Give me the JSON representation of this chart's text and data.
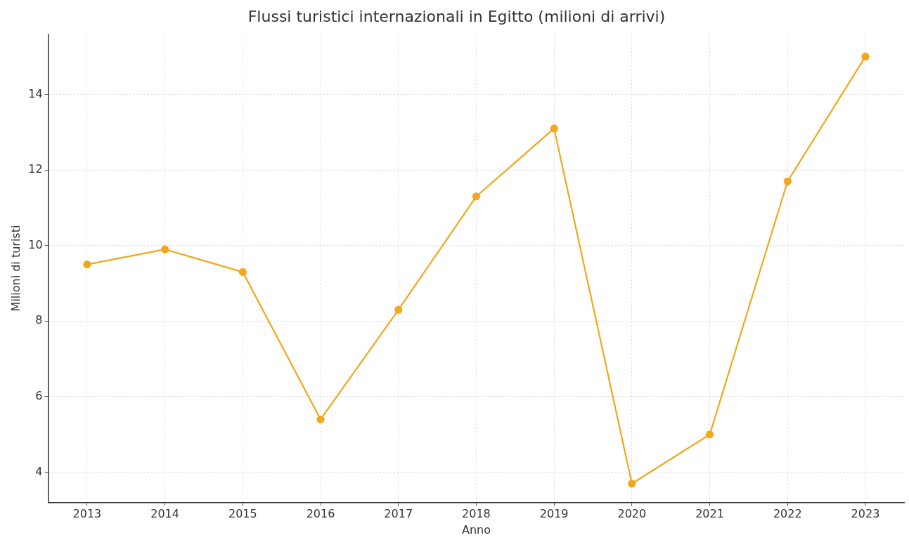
{
  "chart_data": {
    "type": "line",
    "title": "Flussi turistici internazionali in Egitto (milioni di arrivi)",
    "xlabel": "Anno",
    "ylabel": "Milioni di turisti",
    "categories": [
      "2013",
      "2014",
      "2015",
      "2016",
      "2017",
      "2018",
      "2019",
      "2020",
      "2021",
      "2022",
      "2023"
    ],
    "series": [
      {
        "color": "#f0a81c",
        "values": [
          9.5,
          9.9,
          9.3,
          5.4,
          8.3,
          11.3,
          13.1,
          3.7,
          5.0,
          11.7,
          15.0
        ]
      }
    ],
    "ylim": [
      3.2,
      15.6
    ],
    "yticks": [
      4,
      6,
      8,
      10,
      12,
      14
    ],
    "grid": true,
    "legend": false,
    "marker": "circle",
    "line_style": "solid"
  }
}
